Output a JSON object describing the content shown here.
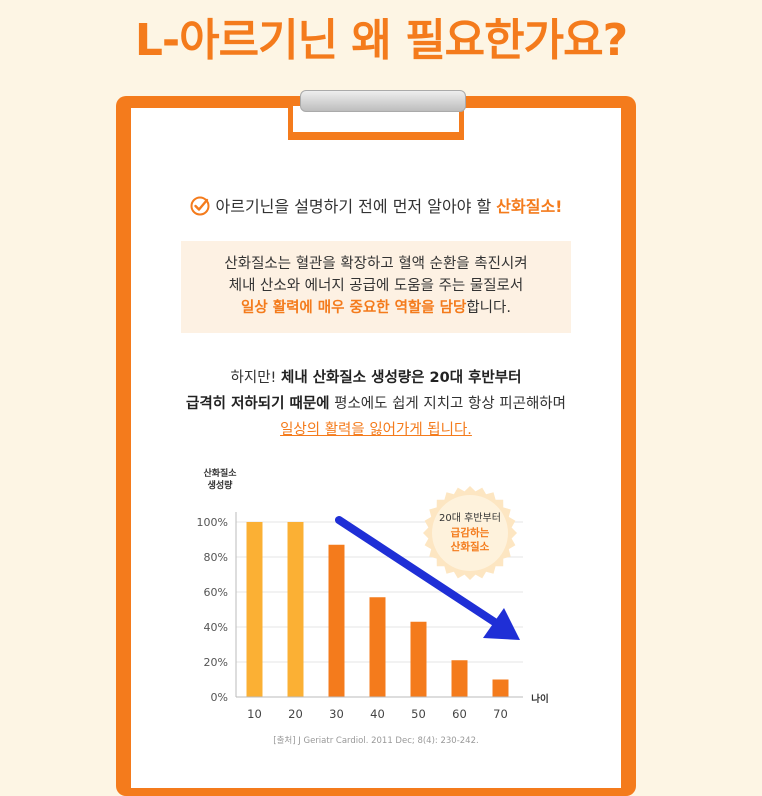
{
  "title": "L-아르기닌 왜 필요한가요?",
  "headline": {
    "text": "아르기닌을 설명하기 전에 먼저 알아야 할 ",
    "highlight": "산화질소!"
  },
  "infobox": {
    "line1": "산화질소는 혈관을 확장하고 혈액 순환을 촉진시켜",
    "line2": "체내 산소와 에너지 공급에 도움을 주는 물질로서",
    "line3_bold": "일상 활력에 매우 중요한 역할을 담당",
    "line3_rest": "합니다."
  },
  "para": {
    "l1_pre": "하지만! ",
    "l1_bold": "체내 산화질소 생성량은 20대 후반부터",
    "l2_bold": "급격히 저하되기 때문에",
    "l2_rest": " 평소에도 쉽게 지치고 항상 피곤해하며",
    "l3": "일상의 활력을 잃어가게 됩니다."
  },
  "chart_data": {
    "type": "bar",
    "categories": [
      "10",
      "20",
      "30",
      "40",
      "50",
      "60",
      "70"
    ],
    "values": [
      100,
      100,
      87,
      57,
      43,
      21,
      10
    ],
    "ylabel_line1": "산화질소",
    "ylabel_line2": "생성량",
    "xlabel": "나이",
    "ylim": [
      0,
      100
    ],
    "yticks": [
      "0%",
      "20%",
      "40%",
      "60%",
      "80%",
      "100%"
    ],
    "grid": true,
    "colors": {
      "early": "#fbb034",
      "late": "#f47b1c",
      "arrow": "#1f2fd6"
    },
    "badge": {
      "line1": "20대 후반부터",
      "line2": "급감하는",
      "line3": "산화질소"
    }
  },
  "source": "[출처] J Geriatr Cardiol. 2011 Dec; 8(4): 230-242."
}
